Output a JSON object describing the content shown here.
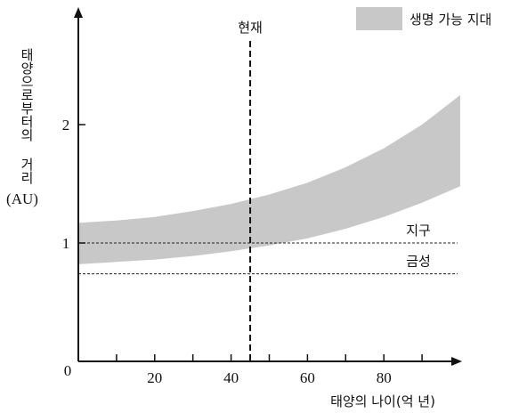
{
  "chart_data": {
    "type": "area",
    "title": "",
    "xlabel": "태양의 나이(억 년)",
    "ylabel": "태양으로부터의 거리",
    "yunit": "(AU)",
    "xlim": [
      0,
      100
    ],
    "ylim": [
      0,
      3
    ],
    "x_ticks": [
      0,
      10,
      20,
      30,
      40,
      50,
      60,
      70,
      80,
      90
    ],
    "x_tick_labels": [
      {
        "x": 20,
        "label": "20"
      },
      {
        "x": 40,
        "label": "40"
      },
      {
        "x": 60,
        "label": "60"
      },
      {
        "x": 80,
        "label": "80"
      }
    ],
    "y_tick_labels": [
      {
        "y": 0,
        "label": "0"
      },
      {
        "y": 1,
        "label": "1"
      },
      {
        "y": 2,
        "label": "2"
      }
    ],
    "legend": {
      "label": "생명 가능 지대",
      "color": "#c8c8c8",
      "position": "top-right"
    },
    "band": {
      "name": "생명 가능 지대",
      "color": "#c8c8c8",
      "x": [
        0,
        10,
        20,
        30,
        40,
        50,
        60,
        70,
        80,
        90,
        100
      ],
      "lower": [
        0.82,
        0.84,
        0.86,
        0.89,
        0.93,
        0.98,
        1.04,
        1.12,
        1.22,
        1.34,
        1.48
      ],
      "upper": [
        1.17,
        1.19,
        1.22,
        1.27,
        1.33,
        1.41,
        1.51,
        1.64,
        1.8,
        2.0,
        2.25
      ]
    },
    "reference_lines": [
      {
        "orientation": "horizontal",
        "y": 1.0,
        "label": "지구"
      },
      {
        "orientation": "horizontal",
        "y": 0.74,
        "label": "금성"
      },
      {
        "orientation": "vertical",
        "x": 45,
        "label": "현재"
      }
    ]
  }
}
